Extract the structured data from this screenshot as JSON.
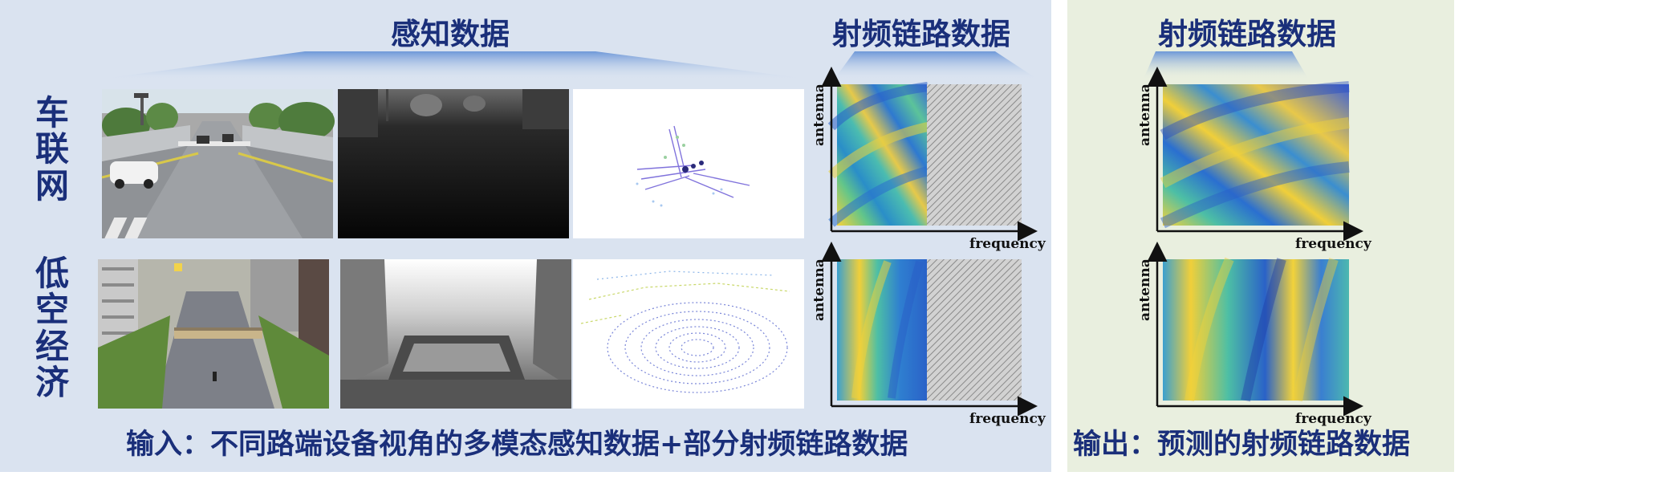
{
  "input_panel": {
    "sensing_title": "感知数据",
    "rf_title": "射频链路数据",
    "row_labels": [
      "车联网",
      "低空经济"
    ],
    "caption": "输入：不同路端设备视角的多模态感知数据+部分射频链路数据"
  },
  "output_panel": {
    "rf_title": "射频链路数据",
    "caption": "输出：预测的射频链路数据"
  },
  "axes": {
    "x_label": "frequency",
    "y_label": "antenna"
  },
  "colors": {
    "title_navy": "#1a2f7a",
    "input_bg": "#dae3f0",
    "output_bg": "#e9efdf"
  }
}
